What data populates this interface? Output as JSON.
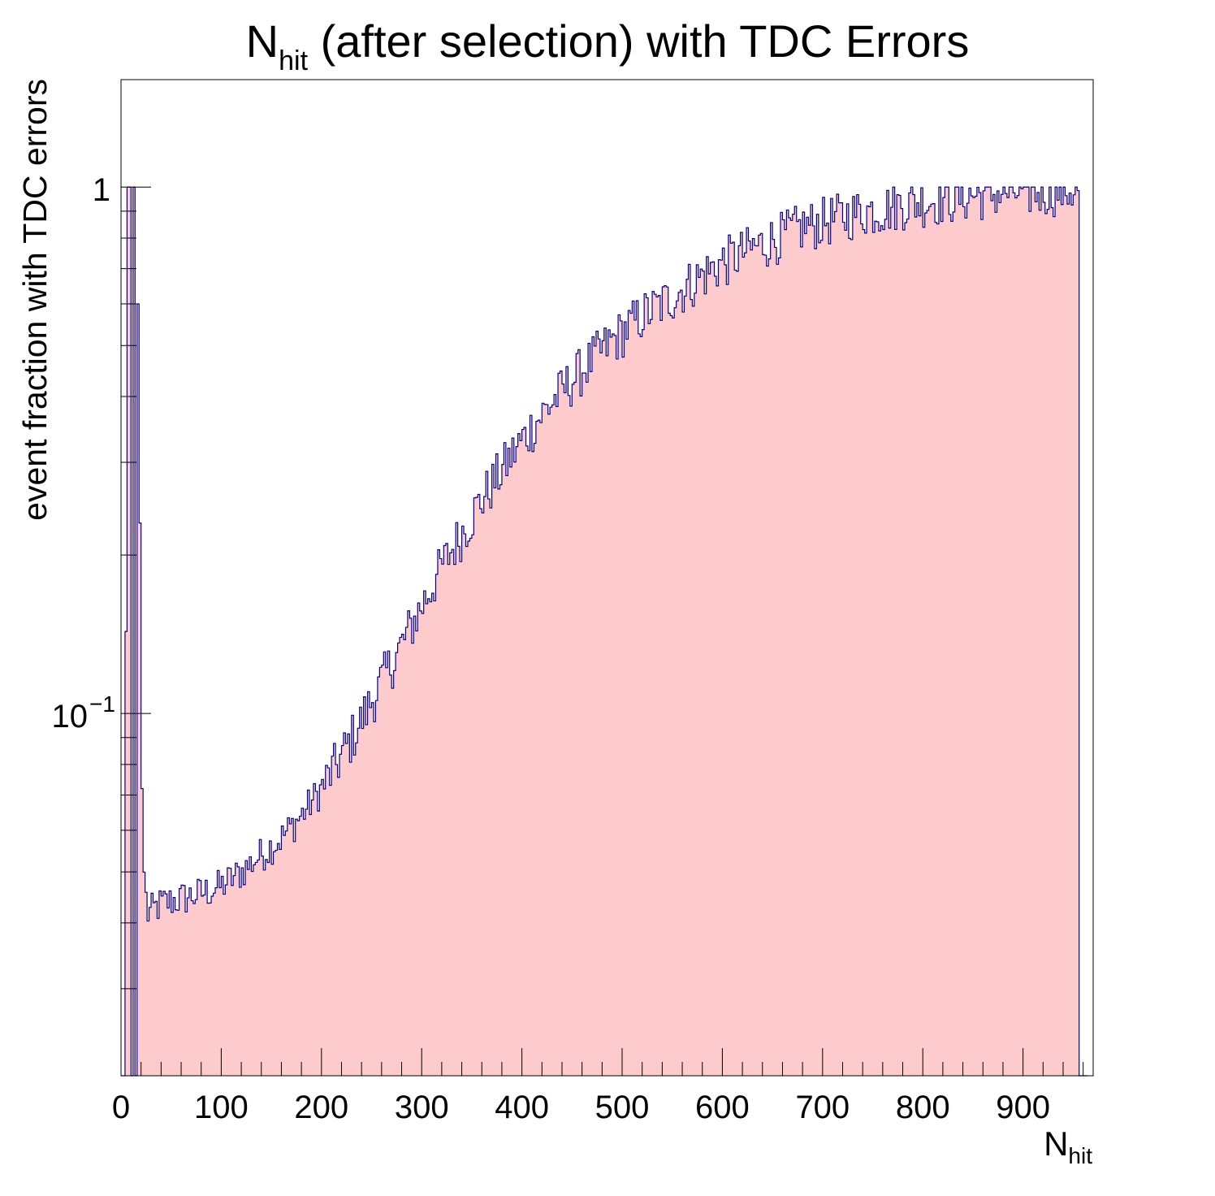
{
  "chart_data": {
    "type": "histogram",
    "title": {
      "main": "N",
      "sub": "hit",
      "rest": " (after selection) with TDC Errors"
    },
    "xlabel": {
      "main": "N",
      "sub": "hit"
    },
    "ylabel": "event fraction with TDC errors",
    "x_range": [
      0,
      970
    ],
    "y_range": [
      0.0205,
      1.6
    ],
    "y_scale": "log",
    "bin_width": 2,
    "x_ticks": [
      0,
      100,
      200,
      300,
      400,
      500,
      600,
      700,
      800,
      900
    ],
    "x_tick_labels": [
      "0",
      "100",
      "200",
      "300",
      "400",
      "500",
      "600",
      "700",
      "800",
      "900"
    ],
    "y_ticks": [
      {
        "value": 0.1,
        "label_base": "10",
        "label_exp": "−1"
      },
      {
        "value": 1,
        "label_base": "1",
        "label_exp": ""
      }
    ],
    "fill_color": "#fdcbcc",
    "line_color": "#00008b",
    "anchors": [
      [
        0,
        0.0205
      ],
      [
        4,
        0.0205
      ],
      [
        6,
        1.0
      ],
      [
        9,
        1.0
      ],
      [
        10,
        0.0205
      ],
      [
        12,
        0.0205
      ],
      [
        13,
        1.0
      ],
      [
        14,
        1.0
      ],
      [
        15,
        0.0205
      ],
      [
        16,
        0.6
      ],
      [
        18,
        0.6
      ],
      [
        19,
        0.23
      ],
      [
        20,
        0.092
      ],
      [
        21,
        0.072
      ],
      [
        22,
        0.052
      ],
      [
        24,
        0.048
      ],
      [
        26,
        0.0415
      ],
      [
        40,
        0.0435
      ],
      [
        60,
        0.0445
      ],
      [
        80,
        0.0455
      ],
      [
        100,
        0.047
      ],
      [
        120,
        0.05
      ],
      [
        140,
        0.054
      ],
      [
        160,
        0.058
      ],
      [
        180,
        0.064
      ],
      [
        200,
        0.072
      ],
      [
        220,
        0.083
      ],
      [
        240,
        0.097
      ],
      [
        260,
        0.115
      ],
      [
        280,
        0.135
      ],
      [
        300,
        0.16
      ],
      [
        320,
        0.19
      ],
      [
        340,
        0.22
      ],
      [
        360,
        0.255
      ],
      [
        380,
        0.29
      ],
      [
        400,
        0.33
      ],
      [
        420,
        0.37
      ],
      [
        440,
        0.41
      ],
      [
        460,
        0.45
      ],
      [
        480,
        0.49
      ],
      [
        500,
        0.53
      ],
      [
        520,
        0.57
      ],
      [
        540,
        0.6
      ],
      [
        560,
        0.64
      ],
      [
        580,
        0.68
      ],
      [
        600,
        0.72
      ],
      [
        620,
        0.75
      ],
      [
        640,
        0.78
      ],
      [
        660,
        0.81
      ],
      [
        680,
        0.84
      ],
      [
        700,
        0.86
      ],
      [
        720,
        0.88
      ],
      [
        740,
        0.9
      ],
      [
        760,
        0.91
      ],
      [
        780,
        0.93
      ],
      [
        800,
        0.94
      ],
      [
        820,
        0.95
      ],
      [
        840,
        0.96
      ],
      [
        860,
        0.97
      ],
      [
        880,
        0.975
      ],
      [
        900,
        0.98
      ],
      [
        920,
        0.985
      ],
      [
        940,
        0.99
      ],
      [
        956,
        0.99
      ],
      [
        957,
        0.0205
      ],
      [
        964,
        0.0205
      ]
    ],
    "noise_fraction": 0.08,
    "legend": "none",
    "grid": false
  }
}
